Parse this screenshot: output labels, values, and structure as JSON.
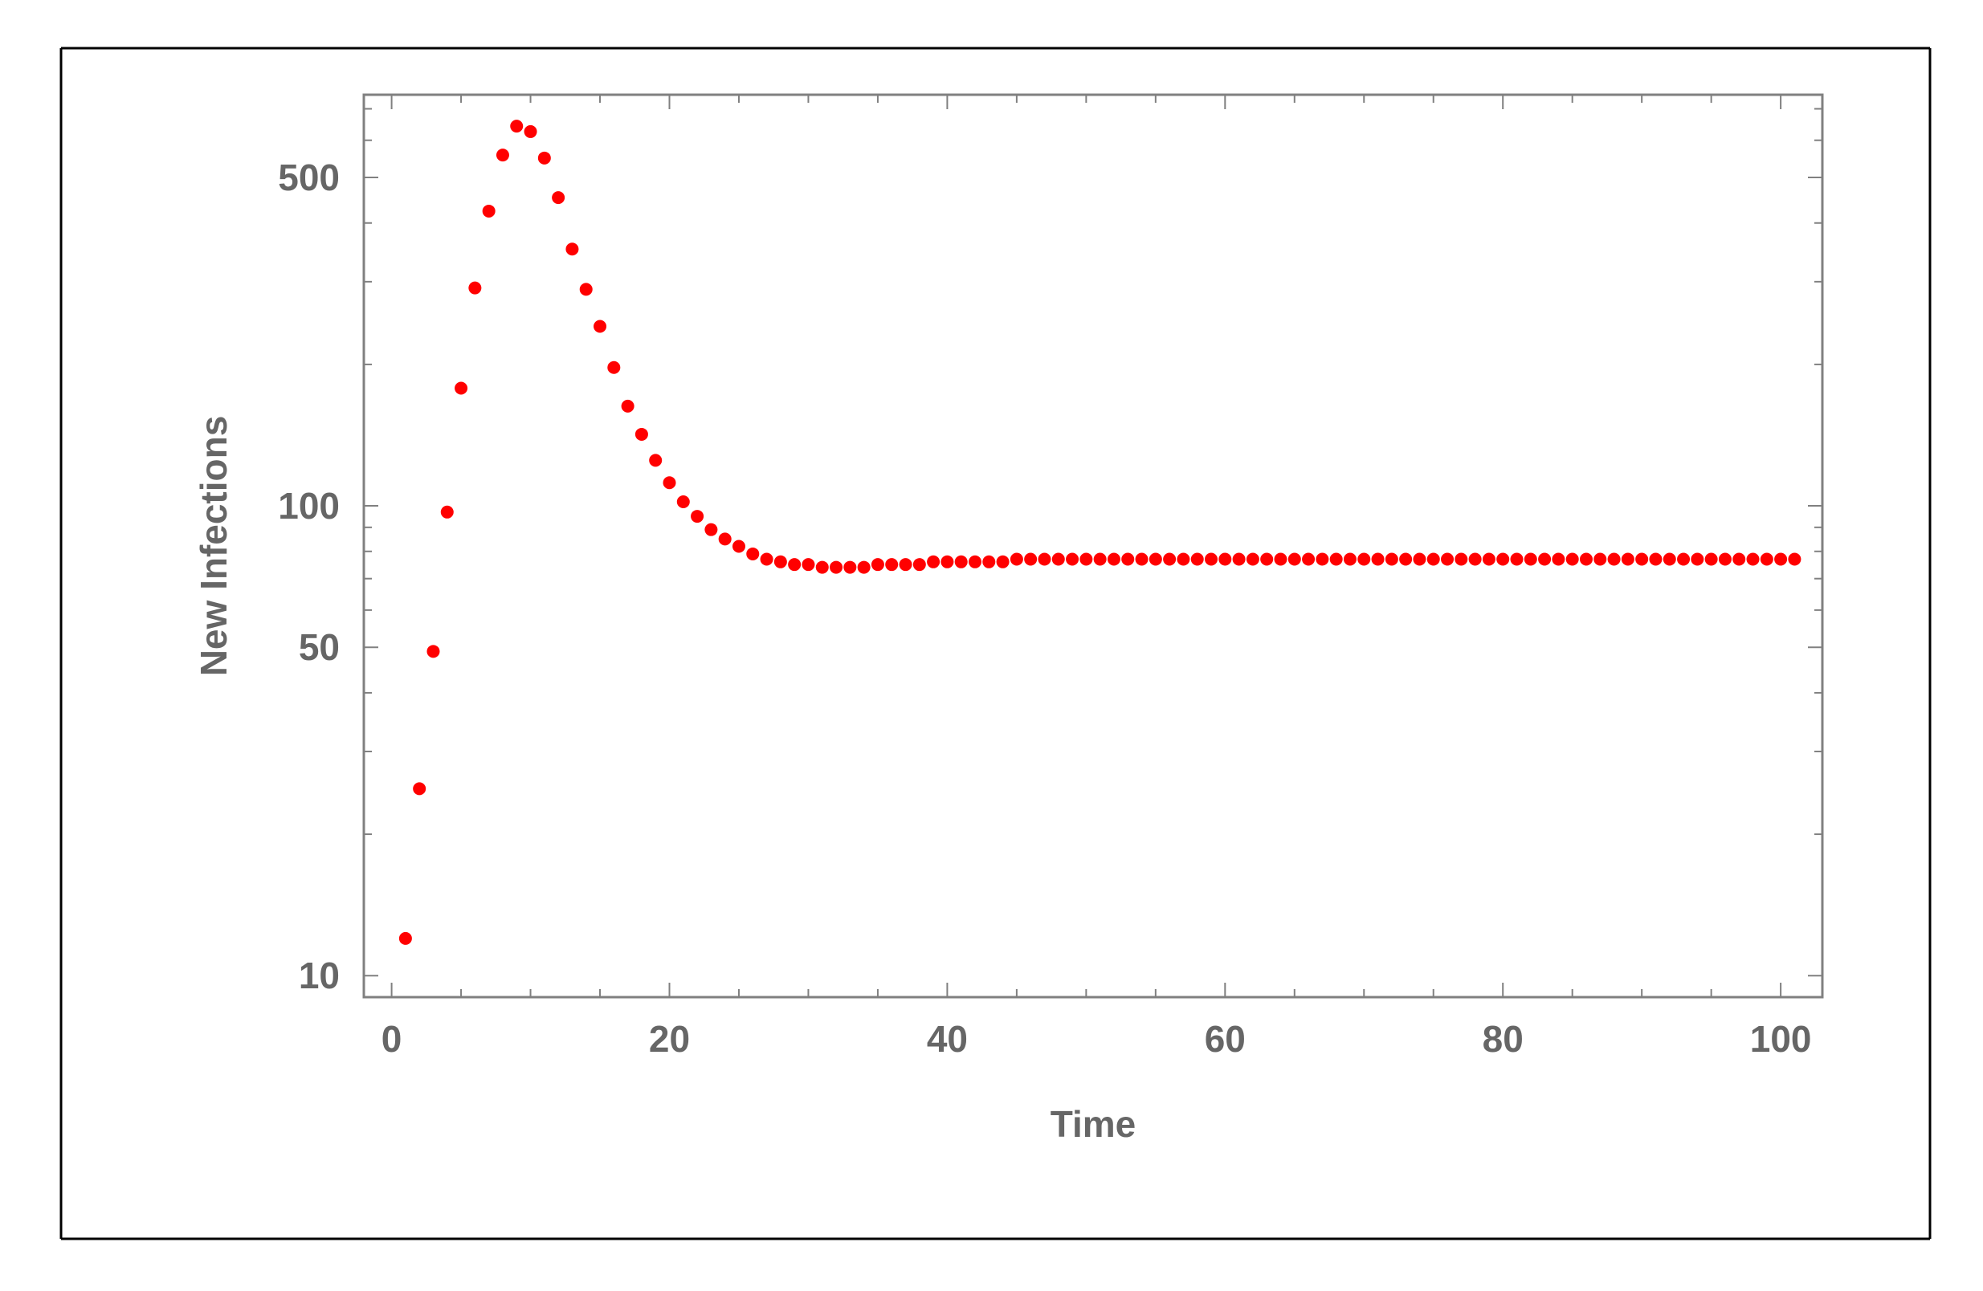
{
  "colors": {
    "marker": "#ff0000",
    "frame": "#808080",
    "text": "#666666",
    "border": "#000000"
  },
  "chart_data": {
    "type": "scatter",
    "title": "",
    "xlabel": "Time",
    "ylabel": "New Infections",
    "xlim": [
      -2,
      103
    ],
    "ylim": [
      9,
      750
    ],
    "yscale": "log",
    "grid": false,
    "legend": "none",
    "x_ticks": [
      0,
      20,
      40,
      60,
      80,
      100
    ],
    "y_ticks": [
      10,
      50,
      100,
      500
    ],
    "x_tick_labels": [
      "0",
      "20",
      "40",
      "60",
      "80",
      "100"
    ],
    "y_tick_labels": [
      "10",
      "50",
      "100",
      "500"
    ],
    "series": [
      {
        "marker_color": "#ff0000",
        "x": [
          1,
          2,
          3,
          4,
          5,
          6,
          7,
          8,
          9,
          10,
          11,
          12,
          13,
          14,
          15,
          16,
          17,
          18,
          19,
          20,
          21,
          22,
          23,
          24,
          25,
          26,
          27,
          28,
          29,
          30,
          31,
          32,
          33,
          34,
          35,
          36,
          37,
          38,
          39,
          40,
          41,
          42,
          43,
          44,
          45,
          46,
          47,
          48,
          49,
          50,
          51,
          52,
          53,
          54,
          55,
          56,
          57,
          58,
          59,
          60,
          61,
          62,
          63,
          64,
          65,
          66,
          67,
          68,
          69,
          70,
          71,
          72,
          73,
          74,
          75,
          76,
          77,
          78,
          79,
          80,
          81,
          82,
          83,
          84,
          85,
          86,
          87,
          88,
          89,
          90,
          91,
          92,
          93,
          94,
          95,
          96,
          97,
          98,
          99,
          100,
          101
        ],
        "y": [
          12,
          25,
          49,
          97,
          178,
          291,
          424,
          558,
          643,
          626,
          550,
          453,
          352,
          289,
          241,
          197,
          163,
          142,
          125,
          112,
          102,
          95,
          89,
          85,
          82,
          79,
          77,
          76,
          75,
          75,
          74,
          74,
          74,
          74,
          75,
          75,
          75,
          75,
          76,
          76,
          76,
          76,
          76,
          76,
          77,
          77,
          77,
          77,
          77,
          77,
          77,
          77,
          77,
          77,
          77,
          77,
          77,
          77,
          77,
          77,
          77,
          77,
          77,
          77,
          77,
          77,
          77,
          77,
          77,
          77,
          77,
          77,
          77,
          77,
          77,
          77,
          77,
          77,
          77,
          77,
          77,
          77,
          77,
          77,
          77,
          77,
          77,
          77,
          77,
          77,
          77,
          77,
          77,
          77,
          77,
          77,
          77,
          77,
          77,
          77,
          77
        ]
      }
    ]
  }
}
